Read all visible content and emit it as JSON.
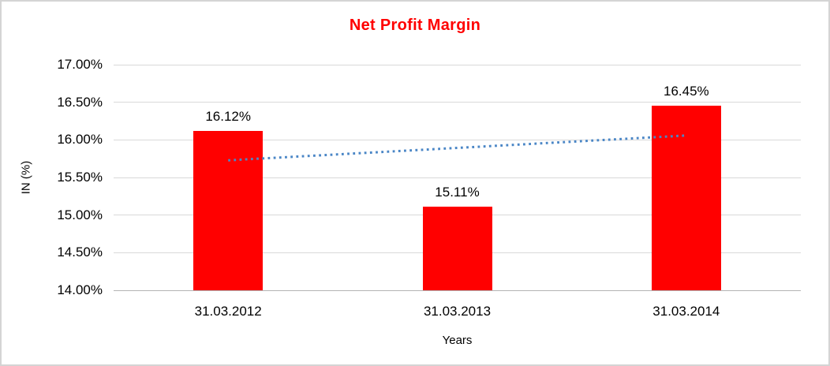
{
  "chart": {
    "title": "Net Profit Margin",
    "xlabel": "Years",
    "ylabel": "IN (%)"
  },
  "chart_data": {
    "type": "bar",
    "title": "Net Profit Margin",
    "categories": [
      "31.03.2012",
      "31.03.2013",
      "31.03.2014"
    ],
    "values": [
      16.12,
      15.11,
      16.45
    ],
    "data_labels": [
      "16.12%",
      "15.11%",
      "16.45%"
    ],
    "xlabel": "Years",
    "ylabel": "IN (%)",
    "ylim": [
      14.0,
      17.0
    ],
    "ytick_step": 0.5,
    "ytick_labels": [
      "14.00%",
      "14.50%",
      "15.00%",
      "15.50%",
      "16.00%",
      "16.50%",
      "17.00%"
    ],
    "grid": "horizontal",
    "legend": "none",
    "colors": {
      "bar": "#ff0000",
      "title": "#ff0000",
      "gridline": "#d9d9d9",
      "baseline": "#b3b3b3",
      "trendline": "#4a86c6",
      "text": "#000000"
    },
    "trendline": {
      "type": "linear",
      "style": "dotted",
      "color": "#4a86c6",
      "endpoint_values": [
        15.73,
        16.06
      ]
    }
  }
}
